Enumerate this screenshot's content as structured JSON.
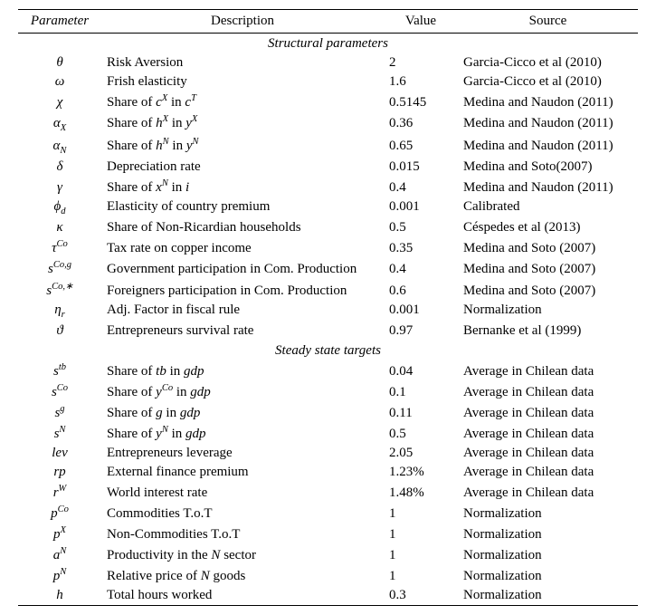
{
  "headers": {
    "param": "Parameter",
    "desc": "Description",
    "value": "Value",
    "source": "Source"
  },
  "section1": "Structural parameters",
  "section2": "Steady state targets",
  "rows1": [
    {
      "param": "θ",
      "desc": "Risk Aversion",
      "value": "2",
      "source": "Garcia-Cicco et al (2010)"
    },
    {
      "param": "ω",
      "desc": "Frish elasticity",
      "value": "1.6",
      "source": "Garcia-Cicco et al (2010)"
    },
    {
      "param": "χ",
      "desc_html": "Share of <i>c<span class='sup'>X</span></i> in <i>c<span class='sup'>T</span></i>",
      "value": "0.5145",
      "source": "Medina and Naudon (2011)"
    },
    {
      "param_html": "α<span class='sub'>X</span>",
      "desc_html": "Share of <i>h<span class='sup'>X</span></i> in <i>y<span class='sup'>X</span></i>",
      "value": "0.36",
      "source": "Medina and Naudon (2011)"
    },
    {
      "param_html": "α<span class='sub'>N</span>",
      "desc_html": "Share of <i>h<span class='sup'>N</span></i> in <i>y<span class='sup'>N</span></i>",
      "value": "0.65",
      "source": "Medina and Naudon (2011)"
    },
    {
      "param": "δ",
      "desc": "Depreciation rate",
      "value": "0.015",
      "source": "Medina and Soto(2007)"
    },
    {
      "param": "γ",
      "desc_html": "Share of <i>x<span class='sup'>N</span></i> in <i>i</i>",
      "value": "0.4",
      "source": "Medina and Naudon (2011)"
    },
    {
      "param_html": "ϕ<span class='sub'>d</span>",
      "desc": "Elasticity of country premium",
      "value": "0.001",
      "source": "Calibrated"
    },
    {
      "param": "κ",
      "desc": "Share of Non-Ricardian households",
      "value": "0.5",
      "source": "Céspedes et al (2013)"
    },
    {
      "param_html": "τ<span class='sup'>Co</span>",
      "desc": "Tax rate on copper income",
      "value": "0.35",
      "source": "Medina and Soto (2007)"
    },
    {
      "param_html": "s<span class='sup'>Co,g</span>",
      "desc": "Government participation in Com. Production",
      "value": "0.4",
      "source": "Medina and Soto (2007)"
    },
    {
      "param_html": "s<span class='sup'>Co,∗</span>",
      "desc": "Foreigners participation in Com. Production",
      "value": "0.6",
      "source": "Medina and Soto (2007)"
    },
    {
      "param_html": "η<span class='sub'>r</span>",
      "desc": "Adj. Factor in fiscal rule",
      "value": "0.001",
      "source": "Normalization"
    },
    {
      "param": "ϑ",
      "desc": "Entrepreneurs survival rate",
      "value": "0.97",
      "source": "Bernanke et al (1999)"
    }
  ],
  "rows2": [
    {
      "param_html": "s<span class='sup'>tb</span>",
      "desc_html": "Share of <i>tb</i> in <i>gdp</i>",
      "value": "0.04",
      "source": "Average in Chilean data"
    },
    {
      "param_html": "s<span class='sup'>Co</span>",
      "desc_html": "Share of <i>y<span class='sup'>Co</span></i> in <i>gdp</i>",
      "value": "0.1",
      "source": "Average in Chilean data"
    },
    {
      "param_html": "s<span class='sup'>g</span>",
      "desc_html": "Share of <i>g</i> in <i>gdp</i>",
      "value": "0.11",
      "source": "Average in Chilean data"
    },
    {
      "param_html": "s<span class='sup'>N</span>",
      "desc_html": "Share of <i>y<span class='sup'>N</span></i> in <i>gdp</i>",
      "value": "0.5",
      "source": "Average in Chilean data"
    },
    {
      "param": "lev",
      "desc": "Entrepreneurs leverage",
      "value": "2.05",
      "source": "Average in Chilean data"
    },
    {
      "param": "rp",
      "desc": "External finance premium",
      "value": "1.23%",
      "source": "Average in Chilean data"
    },
    {
      "param_html": "r<span class='sup'>W</span>",
      "desc": "World interest rate",
      "value": "1.48%",
      "source": "Average in Chilean data"
    },
    {
      "param_html": "p<span class='sup'>Co</span>",
      "desc": "Commodities T.o.T",
      "value": "1",
      "source": "Normalization"
    },
    {
      "param_html": "p<span class='sup'>X</span>",
      "desc": "Non-Commodities T.o.T",
      "value": "1",
      "source": "Normalization"
    },
    {
      "param_html": "a<span class='sup'>N</span>",
      "desc_html": "Productivity in the <i>N</i> sector",
      "value": "1",
      "source": "Normalization"
    },
    {
      "param_html": "p<span class='sup'>N</span>",
      "desc_html": "Relative price of <i>N</i> goods",
      "value": "1",
      "source": "Normalization"
    },
    {
      "param": "h",
      "desc": "Total hours worked",
      "value": "0.3",
      "source": "Normalization"
    }
  ]
}
